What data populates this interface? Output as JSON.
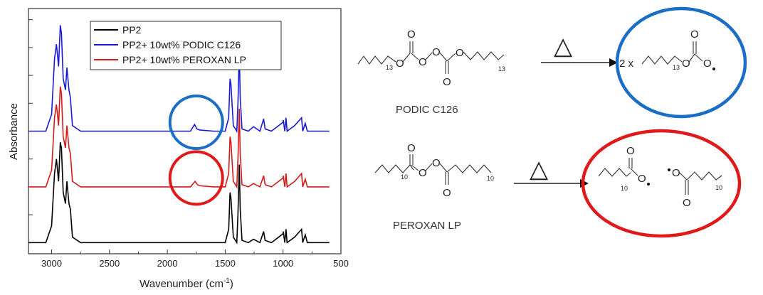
{
  "chart_data": {
    "type": "line",
    "xlabel_main": "Wavenumber (cm",
    "xlabel_sup": "-1",
    "xlabel_close": ")",
    "ylabel": "Absorbance",
    "xlim": [
      3200,
      500
    ],
    "xticks": [
      3000,
      2500,
      2000,
      1500,
      1000,
      500
    ],
    "xtick_labels": [
      "3000",
      "2500",
      "2000",
      "1500",
      "1000",
      "500"
    ],
    "yticks_visible": true,
    "ytick_labels_visible": false,
    "grid": false,
    "legend_position": "top-center",
    "series": [
      {
        "name": "PP2",
        "color": "#000000",
        "offset": 0,
        "points": [
          [
            3200,
            0.0
          ],
          [
            3050,
            0.0
          ],
          [
            3000,
            0.15
          ],
          [
            2975,
            0.62
          ],
          [
            2958,
            0.75
          ],
          [
            2940,
            0.55
          ],
          [
            2925,
            0.9
          ],
          [
            2915,
            0.85
          ],
          [
            2900,
            0.45
          ],
          [
            2880,
            0.35
          ],
          [
            2868,
            0.55
          ],
          [
            2850,
            0.35
          ],
          [
            2838,
            0.3
          ],
          [
            2820,
            0.05
          ],
          [
            2750,
            0.0
          ],
          [
            2000,
            0.0
          ],
          [
            1750,
            0.0
          ],
          [
            1500,
            0.0
          ],
          [
            1470,
            0.12
          ],
          [
            1458,
            0.45
          ],
          [
            1450,
            0.4
          ],
          [
            1430,
            0.05
          ],
          [
            1400,
            0.0
          ],
          [
            1390,
            0.25
          ],
          [
            1378,
            0.7
          ],
          [
            1370,
            0.3
          ],
          [
            1355,
            0.02
          ],
          [
            1300,
            0.0
          ],
          [
            1255,
            0.03
          ],
          [
            1200,
            0.0
          ],
          [
            1168,
            0.1
          ],
          [
            1155,
            0.02
          ],
          [
            1100,
            0.0
          ],
          [
            1000,
            0.08
          ],
          [
            998,
            0.1
          ],
          [
            985,
            0.0
          ],
          [
            975,
            0.12
          ],
          [
            965,
            0.0
          ],
          [
            900,
            0.05
          ],
          [
            840,
            0.12
          ],
          [
            830,
            0.0
          ],
          [
            808,
            0.07
          ],
          [
            790,
            0.0
          ],
          [
            600,
            0.0
          ]
        ]
      },
      {
        "name": "PP2+ 10wt% PODIC C126",
        "color": "#1a1ad6",
        "offset": 1.0,
        "points": [
          [
            3200,
            0.0
          ],
          [
            3050,
            0.0
          ],
          [
            3000,
            0.15
          ],
          [
            2975,
            0.65
          ],
          [
            2958,
            0.78
          ],
          [
            2940,
            0.58
          ],
          [
            2925,
            0.95
          ],
          [
            2915,
            0.88
          ],
          [
            2900,
            0.47
          ],
          [
            2880,
            0.37
          ],
          [
            2868,
            0.57
          ],
          [
            2850,
            0.37
          ],
          [
            2838,
            0.3
          ],
          [
            2820,
            0.05
          ],
          [
            2750,
            0.0
          ],
          [
            2000,
            0.0
          ],
          [
            1800,
            0.0
          ],
          [
            1765,
            0.06
          ],
          [
            1745,
            0.02
          ],
          [
            1720,
            0.01
          ],
          [
            1600,
            0.0
          ],
          [
            1500,
            0.0
          ],
          [
            1470,
            0.12
          ],
          [
            1458,
            0.47
          ],
          [
            1450,
            0.42
          ],
          [
            1430,
            0.05
          ],
          [
            1400,
            0.0
          ],
          [
            1390,
            0.25
          ],
          [
            1378,
            0.72
          ],
          [
            1370,
            0.3
          ],
          [
            1355,
            0.02
          ],
          [
            1300,
            0.0
          ],
          [
            1255,
            0.04
          ],
          [
            1200,
            0.0
          ],
          [
            1168,
            0.11
          ],
          [
            1155,
            0.02
          ],
          [
            1100,
            0.0
          ],
          [
            1000,
            0.08
          ],
          [
            998,
            0.1
          ],
          [
            985,
            0.0
          ],
          [
            975,
            0.12
          ],
          [
            965,
            0.0
          ],
          [
            900,
            0.05
          ],
          [
            840,
            0.12
          ],
          [
            830,
            0.0
          ],
          [
            808,
            0.07
          ],
          [
            790,
            0.0
          ],
          [
            600,
            0.0
          ]
        ]
      },
      {
        "name": "PP2+ 10wt% PEROXAN LP",
        "color": "#d61a1a",
        "offset": 0.5,
        "points": [
          [
            3200,
            0.0
          ],
          [
            3050,
            0.0
          ],
          [
            3000,
            0.15
          ],
          [
            2975,
            0.62
          ],
          [
            2958,
            0.74
          ],
          [
            2940,
            0.55
          ],
          [
            2925,
            0.9
          ],
          [
            2915,
            0.84
          ],
          [
            2900,
            0.45
          ],
          [
            2880,
            0.35
          ],
          [
            2868,
            0.55
          ],
          [
            2850,
            0.35
          ],
          [
            2838,
            0.3
          ],
          [
            2820,
            0.05
          ],
          [
            2750,
            0.0
          ],
          [
            2000,
            0.0
          ],
          [
            1800,
            0.0
          ],
          [
            1760,
            0.05
          ],
          [
            1740,
            0.02
          ],
          [
            1720,
            0.01
          ],
          [
            1600,
            0.0
          ],
          [
            1500,
            0.0
          ],
          [
            1470,
            0.12
          ],
          [
            1458,
            0.45
          ],
          [
            1450,
            0.4
          ],
          [
            1430,
            0.05
          ],
          [
            1400,
            0.0
          ],
          [
            1390,
            0.25
          ],
          [
            1378,
            0.7
          ],
          [
            1370,
            0.3
          ],
          [
            1355,
            0.02
          ],
          [
            1300,
            0.0
          ],
          [
            1255,
            0.03
          ],
          [
            1200,
            0.0
          ],
          [
            1168,
            0.1
          ],
          [
            1155,
            0.02
          ],
          [
            1100,
            0.0
          ],
          [
            1000,
            0.08
          ],
          [
            998,
            0.1
          ],
          [
            985,
            0.0
          ],
          [
            975,
            0.12
          ],
          [
            965,
            0.0
          ],
          [
            900,
            0.05
          ],
          [
            840,
            0.12
          ],
          [
            830,
            0.0
          ],
          [
            808,
            0.07
          ],
          [
            790,
            0.0
          ],
          [
            600,
            0.0
          ]
        ]
      }
    ],
    "highlights": [
      {
        "series": "PP2+ 10wt% PODIC C126",
        "center_x": 1750,
        "color": "#1a6ec8",
        "meaning": "carbonyl peak"
      },
      {
        "series": "PP2+ 10wt% PEROXAN LP",
        "center_x": 1750,
        "color": "#e01a1a",
        "meaning": "carbonyl peak"
      }
    ]
  },
  "scheme": {
    "reaction_1": {
      "compound_name": "PODIC C126",
      "heat_symbol": "△",
      "product_prefix": "2 x",
      "subscript": "13",
      "atom_O": "O",
      "circle_color": "#1a6ec8"
    },
    "reaction_2": {
      "compound_name": "PEROXAN LP",
      "heat_symbol": "△",
      "subscript": "10",
      "atom_O": "O",
      "circle_color": "#e01a1a"
    }
  }
}
